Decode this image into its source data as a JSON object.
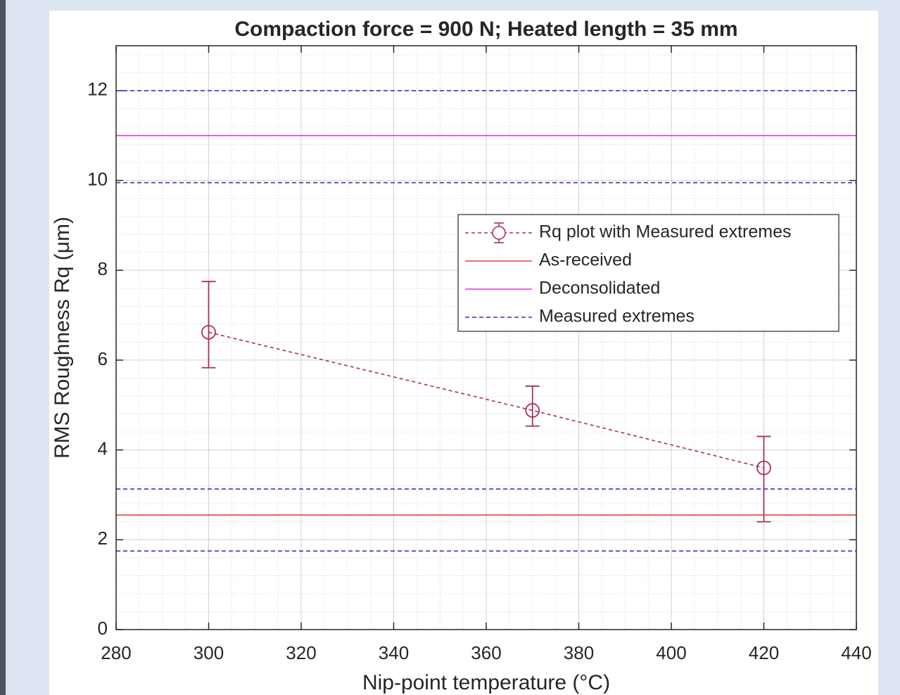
{
  "chart_data": {
    "type": "errorbar",
    "title": "Compaction force = 900 N; Heated length = 35 mm",
    "xlabel": "Nip-point temperature (°C)",
    "ylabel": "RMS Roughness Rq (μm)",
    "xlim": [
      280,
      440
    ],
    "xticks": [
      280,
      300,
      320,
      340,
      360,
      380,
      400,
      420,
      440
    ],
    "ylim": [
      0,
      13
    ],
    "yticks": [
      0,
      2,
      4,
      6,
      8,
      10,
      12
    ],
    "grid": true,
    "minor_grid": true,
    "series": [
      {
        "name": "Rq plot with Measured extremes",
        "color": "#a8325a",
        "line_style": "dashed",
        "marker": "circle",
        "x": [
          300,
          370,
          420
        ],
        "values": [
          6.62,
          4.88,
          3.6
        ],
        "error_lower": [
          5.83,
          4.53,
          2.4
        ],
        "error_upper": [
          7.75,
          5.42,
          4.3
        ]
      },
      {
        "name": "As-received",
        "color": "#e8403a",
        "line_style": "solid",
        "hline": true,
        "values": [
          2.55
        ]
      },
      {
        "name": "Deconsolidated",
        "color": "#e633e6",
        "line_style": "solid",
        "hline": true,
        "values": [
          11
        ]
      },
      {
        "name": "Measured extremes",
        "color": "#3333cc",
        "line_style": "dashed",
        "hline": true,
        "values": [
          12,
          9.95,
          3.13,
          1.75
        ]
      }
    ]
  }
}
